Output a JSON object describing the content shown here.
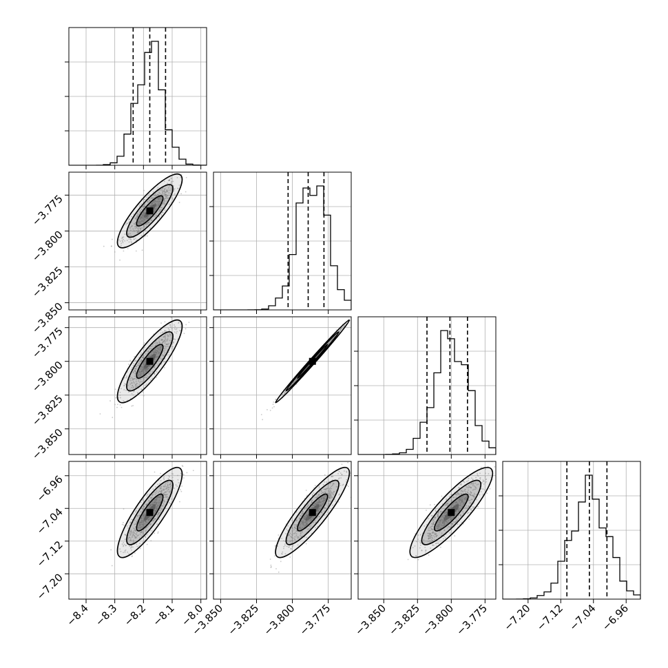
{
  "chart_data": {
    "type": "corner",
    "parameters": [
      {
        "range": [
          -8.46,
          -7.98
        ],
        "ticks": [
          -8.4,
          -8.3,
          -8.2,
          -8.1,
          -8.0
        ],
        "tick_labels": [
          "−8.4",
          "−8.3",
          "−8.2",
          "−8.1",
          "−8.0"
        ],
        "quantiles": [
          -8.236,
          -8.178,
          -8.123
        ],
        "peak": -8.178,
        "sigma": 0.046
      },
      {
        "range": [
          -3.855,
          -3.759
        ],
        "ticks": [
          -3.85,
          -3.825,
          -3.8,
          -3.775
        ],
        "tick_labels": [
          "−3.850",
          "−3.825",
          "−3.800",
          "−3.775"
        ],
        "quantiles": [
          -3.803,
          -3.789,
          -3.778
        ],
        "peak": -3.786,
        "sigma": 0.0105
      },
      {
        "range": [
          -3.869,
          -3.767
        ],
        "ticks": [
          -3.85,
          -3.825,
          -3.8,
          -3.775
        ],
        "tick_labels": [
          "−3.850",
          "−3.825",
          "−3.800",
          "−3.775"
        ],
        "quantiles": [
          -3.818,
          -3.801,
          -3.788
        ],
        "peak": -3.8,
        "sigma": 0.0125
      },
      {
        "range": [
          -7.262,
          -6.925
        ],
        "ticks": [
          -7.2,
          -7.12,
          -7.04,
          -6.96
        ],
        "tick_labels": [
          "−7.20",
          "−7.12",
          "−7.04",
          "−6.96"
        ],
        "quantiles": [
          -7.105,
          -7.05,
          -7.007
        ],
        "peak": -7.05,
        "sigma": 0.045
      }
    ],
    "correlations": [
      {
        "row": 1,
        "col": 0,
        "rho": 0.85
      },
      {
        "row": 2,
        "col": 0,
        "rho": 0.85
      },
      {
        "row": 2,
        "col": 1,
        "rho": 0.995
      },
      {
        "row": 3,
        "col": 0,
        "rho": 0.85
      },
      {
        "row": 3,
        "col": 1,
        "rho": 0.88
      },
      {
        "row": 3,
        "col": 2,
        "rho": 0.87
      }
    ],
    "histogram_bins": 20,
    "grid": true,
    "colors": {
      "points": "#9a9a9a",
      "lines": "#000000",
      "density": "#555555"
    }
  }
}
